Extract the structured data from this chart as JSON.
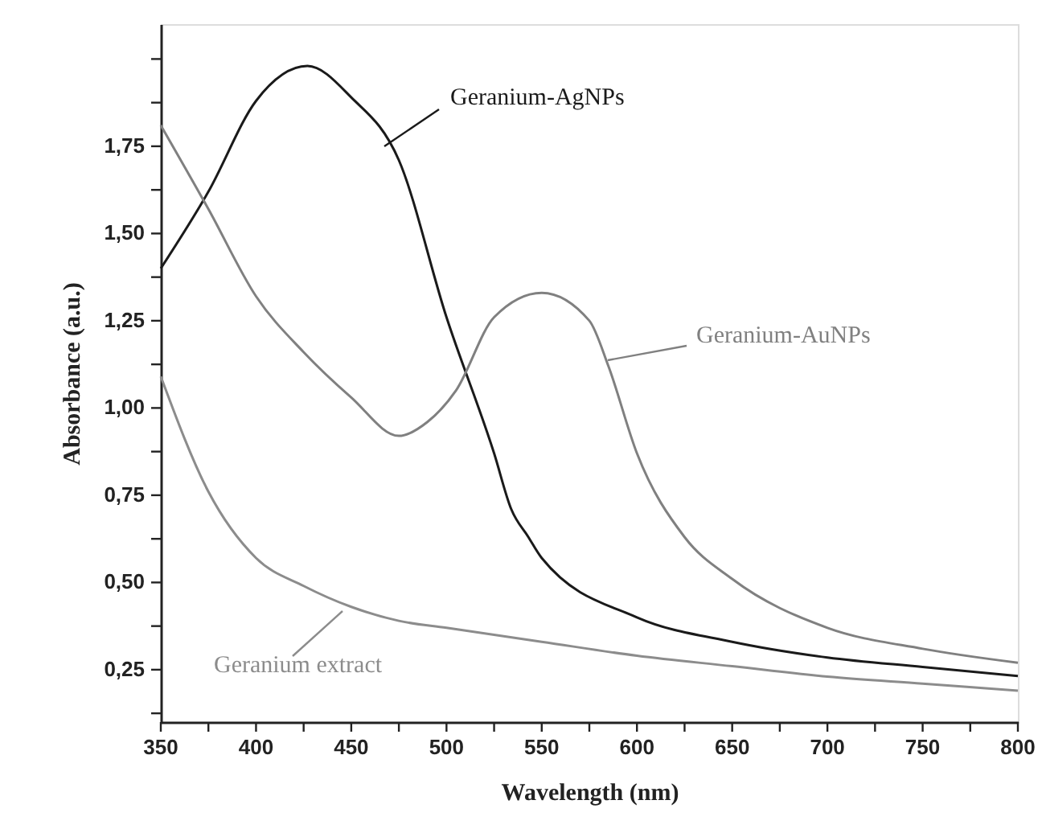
{
  "chart_data": {
    "type": "line",
    "xlabel": "Wavelength (nm)",
    "ylabel": "Absorbance (a.u.)",
    "xlim": [
      350,
      800
    ],
    "ylim": [
      0.1,
      2.1
    ],
    "xticks": [
      350,
      {
        "value": 375,
        "label": null
      },
      400,
      {
        "value": 425,
        "label": null
      },
      450,
      {
        "value": 475,
        "label": null
      },
      500,
      {
        "value": 525,
        "label": null
      },
      550,
      {
        "value": 575,
        "label": null
      },
      600,
      {
        "value": 625,
        "label": null
      },
      650,
      {
        "value": 675,
        "label": null
      },
      700,
      {
        "value": 725,
        "label": null
      },
      750,
      {
        "value": 775,
        "label": null
      },
      800
    ],
    "yticks": [
      {
        "value": 0.125,
        "label": null
      },
      {
        "value": 0.25,
        "label": "0,25"
      },
      {
        "value": 0.375,
        "label": null
      },
      {
        "value": 0.5,
        "label": "0,50"
      },
      {
        "value": 0.625,
        "label": null
      },
      {
        "value": 0.75,
        "label": "0,75"
      },
      {
        "value": 0.875,
        "label": null
      },
      {
        "value": 1.0,
        "label": "1,00"
      },
      {
        "value": 1.125,
        "label": null
      },
      {
        "value": 1.25,
        "label": "1,25"
      },
      {
        "value": 1.375,
        "label": null
      },
      {
        "value": 1.5,
        "label": "1,50"
      },
      {
        "value": 1.625,
        "label": null
      },
      {
        "value": 1.75,
        "label": "1,75"
      },
      {
        "value": 1.875,
        "label": null
      },
      {
        "value": 2.0,
        "label": null
      }
    ],
    "grid": false,
    "marker": "none",
    "line_style": "solid",
    "series": [
      {
        "name": "Geranium-AgNPs",
        "color": "#1a1a1a",
        "x": [
          350,
          375,
          400,
          427,
          450,
          475,
          500,
          525,
          534,
          543,
          550,
          600,
          650,
          700,
          750,
          800
        ],
        "values": [
          1.4,
          1.62,
          1.88,
          1.98,
          1.89,
          1.71,
          1.26,
          0.87,
          0.71,
          0.63,
          0.57,
          0.4,
          0.33,
          0.285,
          0.258,
          0.232
        ]
      },
      {
        "name": "Geranium-AuNPs",
        "color": "#808080",
        "x": [
          350,
          375,
          400,
          425,
          450,
          475,
          490,
          505,
          525,
          550,
          575,
          585,
          600,
          625,
          650,
          700,
          750,
          800
        ],
        "values": [
          1.81,
          1.57,
          1.32,
          1.16,
          1.03,
          0.92,
          0.96,
          1.05,
          1.26,
          1.33,
          1.25,
          1.12,
          0.87,
          0.63,
          0.51,
          0.37,
          0.31,
          0.27
        ]
      },
      {
        "name": "Geranium extract",
        "color": "#8c8c8c",
        "x": [
          350,
          375,
          400,
          425,
          450,
          475,
          500,
          550,
          600,
          650,
          700,
          750,
          800
        ],
        "values": [
          1.09,
          0.76,
          0.57,
          0.49,
          0.43,
          0.39,
          0.37,
          0.33,
          0.29,
          0.26,
          0.23,
          0.21,
          0.19
        ]
      }
    ]
  }
}
